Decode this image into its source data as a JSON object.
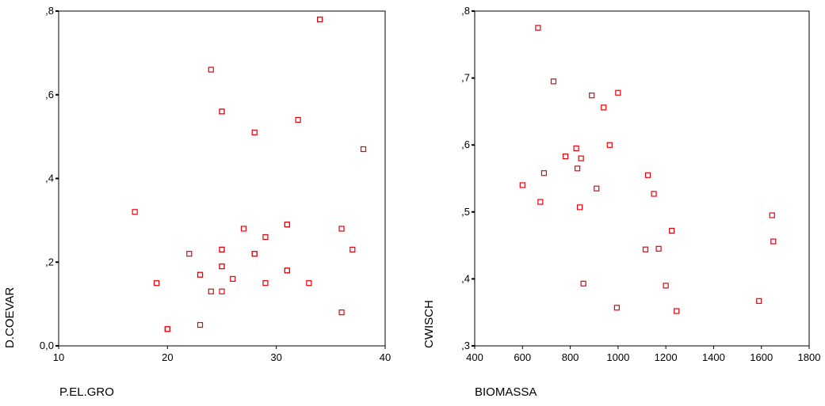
{
  "chart_data": [
    {
      "type": "scatter",
      "xlabel": "P.EL.GRO",
      "ylabel": "D.COEVAR",
      "xlim": [
        10,
        40
      ],
      "ylim": [
        0,
        0.8
      ],
      "xticks": [
        10,
        20,
        30,
        40
      ],
      "xtick_labels": [
        "10",
        "20",
        "30",
        "40"
      ],
      "yticks": [
        0,
        0.2,
        0.4,
        0.6,
        0.8
      ],
      "ytick_labels": [
        "0,0",
        ",2",
        ",4",
        ",6",
        ",8"
      ],
      "grid": false,
      "marker_color": "#e8000b",
      "points": [
        {
          "x": 17,
          "y": 0.32
        },
        {
          "x": 19,
          "y": 0.15
        },
        {
          "x": 20,
          "y": 0.04
        },
        {
          "x": 20,
          "y": 0.04
        },
        {
          "x": 22,
          "y": 0.22
        },
        {
          "x": 23,
          "y": 0.17
        },
        {
          "x": 23,
          "y": 0.17
        },
        {
          "x": 23,
          "y": 0.05
        },
        {
          "x": 24,
          "y": 0.66
        },
        {
          "x": 24,
          "y": 0.13
        },
        {
          "x": 25,
          "y": 0.56
        },
        {
          "x": 25,
          "y": 0.56
        },
        {
          "x": 25,
          "y": 0.23
        },
        {
          "x": 25,
          "y": 0.23
        },
        {
          "x": 25,
          "y": 0.19
        },
        {
          "x": 25,
          "y": 0.19
        },
        {
          "x": 25,
          "y": 0.13
        },
        {
          "x": 26,
          "y": 0.16
        },
        {
          "x": 27,
          "y": 0.28
        },
        {
          "x": 28,
          "y": 0.51
        },
        {
          "x": 28,
          "y": 0.22
        },
        {
          "x": 28,
          "y": 0.22
        },
        {
          "x": 29,
          "y": 0.26
        },
        {
          "x": 29,
          "y": 0.15
        },
        {
          "x": 31,
          "y": 0.29
        },
        {
          "x": 31,
          "y": 0.29
        },
        {
          "x": 31,
          "y": 0.18
        },
        {
          "x": 31,
          "y": 0.18
        },
        {
          "x": 32,
          "y": 0.54
        },
        {
          "x": 33,
          "y": 0.15
        },
        {
          "x": 34,
          "y": 0.78
        },
        {
          "x": 34,
          "y": 0.78
        },
        {
          "x": 36,
          "y": 0.28
        },
        {
          "x": 36,
          "y": 0.08
        },
        {
          "x": 37,
          "y": 0.23
        },
        {
          "x": 38,
          "y": 0.47
        }
      ]
    },
    {
      "type": "scatter",
      "xlabel": "BIOMASSA",
      "ylabel": "CWISCH",
      "xlim": [
        400,
        1800
      ],
      "ylim": [
        0.3,
        0.8
      ],
      "xticks": [
        400,
        600,
        800,
        1000,
        1200,
        1400,
        1600,
        1800
      ],
      "xtick_labels": [
        "400",
        "600",
        "800",
        "1000",
        "1200",
        "1400",
        "1600",
        "1800"
      ],
      "yticks": [
        0.3,
        0.4,
        0.5,
        0.6,
        0.7,
        0.8
      ],
      "ytick_labels": [
        ",3",
        ",4",
        ",5",
        ",6",
        ",7",
        ",8"
      ],
      "grid": false,
      "marker_color": "#e8000b",
      "points": [
        {
          "x": 600,
          "y": 0.54
        },
        {
          "x": 665,
          "y": 0.775
        },
        {
          "x": 675,
          "y": 0.515
        },
        {
          "x": 690,
          "y": 0.558
        },
        {
          "x": 730,
          "y": 0.695
        },
        {
          "x": 780,
          "y": 0.583
        },
        {
          "x": 825,
          "y": 0.595
        },
        {
          "x": 830,
          "y": 0.565
        },
        {
          "x": 840,
          "y": 0.507
        },
        {
          "x": 845,
          "y": 0.58
        },
        {
          "x": 855,
          "y": 0.393
        },
        {
          "x": 890,
          "y": 0.674
        },
        {
          "x": 910,
          "y": 0.535
        },
        {
          "x": 940,
          "y": 0.656
        },
        {
          "x": 965,
          "y": 0.6
        },
        {
          "x": 995,
          "y": 0.357
        },
        {
          "x": 1000,
          "y": 0.678
        },
        {
          "x": 1115,
          "y": 0.444
        },
        {
          "x": 1125,
          "y": 0.555
        },
        {
          "x": 1150,
          "y": 0.527
        },
        {
          "x": 1170,
          "y": 0.445
        },
        {
          "x": 1200,
          "y": 0.39
        },
        {
          "x": 1225,
          "y": 0.472
        },
        {
          "x": 1245,
          "y": 0.352
        },
        {
          "x": 1590,
          "y": 0.367
        },
        {
          "x": 1645,
          "y": 0.495
        },
        {
          "x": 1650,
          "y": 0.456
        }
      ]
    }
  ]
}
